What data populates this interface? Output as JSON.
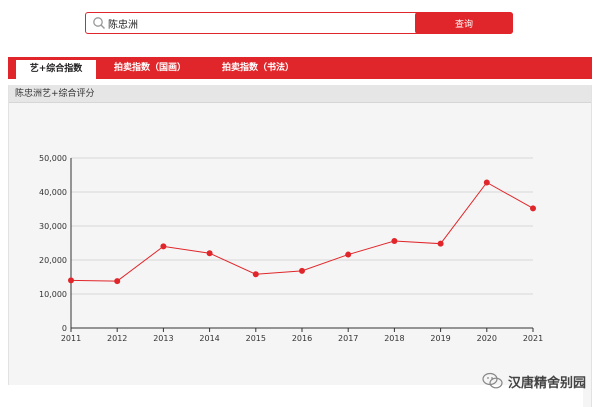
{
  "search": {
    "value": "陈忠洲",
    "button_label": "查询"
  },
  "tabs": [
    {
      "label": "艺+综合指数",
      "active": true
    },
    {
      "label": "拍卖指数（国画）",
      "active": false
    },
    {
      "label": "拍卖指数（书法）",
      "active": false
    }
  ],
  "panel": {
    "title": "陈忠洲艺+综合评分"
  },
  "watermark": {
    "text": "汉唐精舍别园"
  },
  "colors": {
    "accent": "#e0262a",
    "line": "#e0262a"
  },
  "chart_data": {
    "type": "line",
    "x": [
      "2011",
      "2012",
      "2013",
      "2014",
      "2015",
      "2016",
      "2017",
      "2018",
      "2019",
      "2020",
      "2021"
    ],
    "series": [
      {
        "values": [
          14000,
          13800,
          24000,
          22000,
          15800,
          16800,
          21600,
          25600,
          24800,
          42800,
          35200
        ]
      }
    ],
    "ylim": [
      0,
      50000
    ],
    "yticks": [
      0,
      10000,
      20000,
      30000,
      40000,
      50000
    ],
    "ytick_labels": [
      "0",
      "10,000",
      "20,000",
      "30,000",
      "40,000",
      "50,000"
    ],
    "grid": true,
    "title": "",
    "xlabel": "",
    "ylabel": ""
  }
}
